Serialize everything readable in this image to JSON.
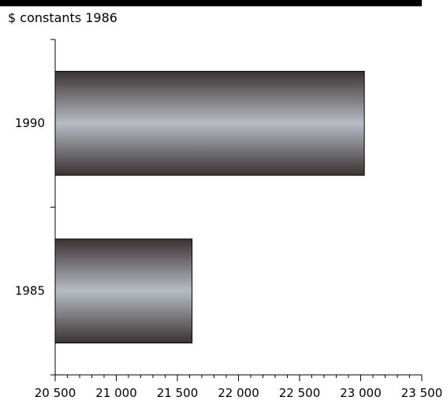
{
  "chart_data": {
    "type": "bar",
    "orientation": "horizontal",
    "unit_label": "$ constants 1986",
    "categories": [
      "1990",
      "1985"
    ],
    "values": [
      23030,
      21620
    ],
    "xlim": [
      20500,
      23500
    ],
    "xticks": [
      "20 500",
      "21 000",
      "21 500",
      "22 000",
      "22 500",
      "23 000",
      "23 500"
    ],
    "title": "",
    "xlabel": "",
    "ylabel": "",
    "grid": false,
    "colors": {
      "bar_dark": "#3a3232",
      "bar_light": "#b7bcc4",
      "header_rule": "#000000",
      "axis": "#000000"
    }
  }
}
